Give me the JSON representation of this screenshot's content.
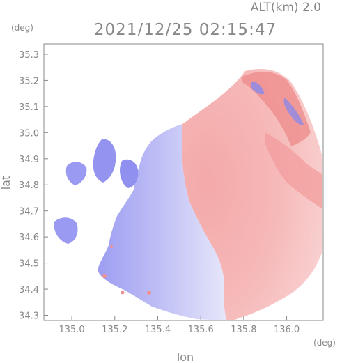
{
  "header": {
    "altitude": "ALT(km) 2.0",
    "timestamp": "2021/12/25 02:15:47"
  },
  "axes": {
    "y_unit": "(deg)",
    "x_unit": "(deg)",
    "ylabel": "lat",
    "xlabel": "lon",
    "xlim": [
      134.87,
      136.17
    ],
    "ylim": [
      34.28,
      35.34
    ],
    "x_ticks": [
      "135.0",
      "135.2",
      "135.4",
      "135.6",
      "135.8",
      "136.0"
    ],
    "y_ticks": [
      "34.3",
      "34.4",
      "34.5",
      "34.6",
      "34.7",
      "34.8",
      "34.9",
      "35.0",
      "35.1",
      "35.2",
      "35.3"
    ]
  },
  "colors": {
    "frame": "#888888",
    "approaching": "#8f8ff0",
    "receding": "#f08f8f",
    "background": "#ffffff"
  }
}
